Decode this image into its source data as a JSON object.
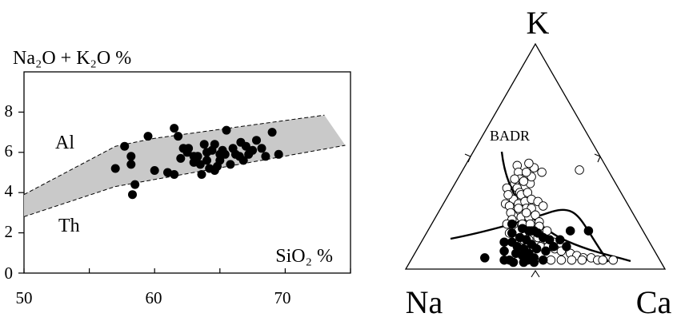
{
  "chart_data": [
    {
      "type": "scatter",
      "title": "",
      "ylabel": "Na₂O + K₂O %",
      "xlabel": "SiO₂ %",
      "xlim": [
        50,
        75
      ],
      "ylim": [
        0,
        10
      ],
      "x_ticks": [
        "50",
        "60",
        "70"
      ],
      "y_ticks": [
        "0",
        "2",
        "4",
        "6",
        "8"
      ],
      "field_labels": {
        "upper": "Al",
        "lower": "Th"
      },
      "series": [
        {
          "values": [
            [
              57.0,
              5.2
            ],
            [
              57.7,
              6.3
            ],
            [
              58.2,
              5.8
            ],
            [
              58.2,
              5.4
            ],
            [
              58.3,
              3.9
            ],
            [
              58.5,
              4.4
            ],
            [
              59.5,
              6.8
            ],
            [
              60.0,
              5.1
            ],
            [
              61.0,
              5.0
            ],
            [
              61.5,
              4.9
            ],
            [
              61.5,
              7.2
            ],
            [
              61.8,
              6.8
            ],
            [
              62.0,
              5.7
            ],
            [
              62.2,
              6.2
            ],
            [
              62.5,
              6.0
            ],
            [
              62.6,
              6.2
            ],
            [
              63.0,
              5.8
            ],
            [
              63.0,
              5.5
            ],
            [
              63.3,
              5.8
            ],
            [
              63.5,
              5.4
            ],
            [
              63.6,
              4.9
            ],
            [
              63.8,
              6.4
            ],
            [
              64.0,
              5.6
            ],
            [
              64.0,
              6.0
            ],
            [
              64.2,
              5.2
            ],
            [
              64.4,
              6.1
            ],
            [
              64.6,
              6.4
            ],
            [
              64.6,
              5.1
            ],
            [
              64.8,
              5.3
            ],
            [
              65.0,
              5.6
            ],
            [
              65.0,
              5.9
            ],
            [
              65.2,
              6.1
            ],
            [
              65.4,
              5.9
            ],
            [
              65.5,
              7.1
            ],
            [
              65.8,
              5.4
            ],
            [
              66.0,
              6.2
            ],
            [
              66.2,
              5.9
            ],
            [
              66.5,
              5.8
            ],
            [
              66.6,
              6.5
            ],
            [
              66.8,
              5.6
            ],
            [
              67.0,
              6.3
            ],
            [
              67.2,
              5.9
            ],
            [
              67.5,
              6.1
            ],
            [
              67.8,
              6.6
            ],
            [
              68.2,
              6.2
            ],
            [
              68.5,
              5.8
            ],
            [
              69.0,
              7.0
            ],
            [
              69.5,
              5.9
            ]
          ]
        }
      ]
    },
    {
      "type": "ternary",
      "title": "",
      "apex_labels": {
        "top": "K",
        "left": "Na",
        "right": "Ca"
      },
      "annotation": "BADR",
      "series": [
        {
          "marker": "open-circle",
          "values": [
            [
              0.2,
              0.46
            ],
            [
              0.22,
              0.43
            ],
            [
              0.24,
              0.4
            ],
            [
              0.21,
              0.36
            ],
            [
              0.23,
              0.38
            ],
            [
              0.25,
              0.36
            ],
            [
              0.27,
              0.34
            ],
            [
              0.29,
              0.38
            ],
            [
              0.26,
              0.31
            ],
            [
              0.28,
              0.33
            ],
            [
              0.3,
              0.34
            ],
            [
              0.24,
              0.29
            ],
            [
              0.26,
              0.28
            ],
            [
              0.29,
              0.29
            ],
            [
              0.31,
              0.3
            ],
            [
              0.33,
              0.31
            ],
            [
              0.28,
              0.25
            ],
            [
              0.31,
              0.26
            ],
            [
              0.33,
              0.27
            ],
            [
              0.35,
              0.27
            ],
            [
              0.3,
              0.22
            ],
            [
              0.33,
              0.23
            ],
            [
              0.36,
              0.23
            ],
            [
              0.38,
              0.24
            ],
            [
              0.32,
              0.19
            ],
            [
              0.35,
              0.2
            ],
            [
              0.38,
              0.2
            ],
            [
              0.41,
              0.21
            ],
            [
              0.37,
              0.16
            ],
            [
              0.4,
              0.17
            ],
            [
              0.43,
              0.17
            ],
            [
              0.46,
              0.17
            ],
            [
              0.41,
              0.13
            ],
            [
              0.44,
              0.14
            ],
            [
              0.48,
              0.13
            ],
            [
              0.51,
              0.12
            ],
            [
              0.47,
              0.1
            ],
            [
              0.5,
              0.1
            ],
            [
              0.53,
              0.09
            ],
            [
              0.56,
              0.08
            ],
            [
              0.6,
              0.07
            ],
            [
              0.63,
              0.06
            ],
            [
              0.66,
              0.05
            ],
            [
              0.69,
              0.05
            ],
            [
              0.72,
              0.04
            ],
            [
              0.74,
              0.04
            ],
            [
              0.78,
              0.04
            ],
            [
              0.45,
              0.44
            ],
            [
              0.23,
              0.33
            ],
            [
              0.28,
              0.41
            ],
            [
              0.31,
              0.43
            ],
            [
              0.27,
              0.45
            ],
            [
              0.25,
              0.43
            ],
            [
              0.3,
              0.27
            ],
            [
              0.34,
              0.25
            ],
            [
              0.36,
              0.3
            ],
            [
              0.39,
              0.28
            ],
            [
              0.42,
              0.19
            ],
            [
              0.39,
              0.13
            ],
            [
              0.35,
              0.17
            ],
            [
              0.32,
              0.16
            ],
            [
              0.29,
              0.2
            ],
            [
              0.44,
              0.1
            ],
            [
              0.54,
              0.04
            ],
            [
              0.58,
              0.04
            ],
            [
              0.62,
              0.04
            ],
            [
              0.66,
              0.04
            ],
            [
              0.24,
              0.47
            ],
            [
              0.26,
              0.39
            ],
            [
              0.22,
              0.4
            ]
          ]
        },
        {
          "marker": "filled-circle",
          "values": [
            [
              0.31,
              0.2
            ],
            [
              0.33,
              0.16
            ],
            [
              0.35,
              0.12
            ],
            [
              0.34,
              0.08
            ],
            [
              0.37,
              0.14
            ],
            [
              0.38,
              0.1
            ],
            [
              0.4,
              0.13
            ],
            [
              0.39,
              0.07
            ],
            [
              0.41,
              0.09
            ],
            [
              0.42,
              0.06
            ],
            [
              0.43,
              0.11
            ],
            [
              0.44,
              0.07
            ],
            [
              0.45,
              0.04
            ],
            [
              0.46,
              0.09
            ],
            [
              0.47,
              0.05
            ],
            [
              0.49,
              0.13
            ],
            [
              0.5,
              0.08
            ],
            [
              0.52,
              0.1
            ],
            [
              0.53,
              0.13
            ],
            [
              0.55,
              0.17
            ],
            [
              0.36,
              0.04
            ],
            [
              0.38,
              0.04
            ],
            [
              0.4,
              0.03
            ],
            [
              0.44,
              0.03
            ],
            [
              0.48,
              0.03
            ],
            [
              0.28,
              0.05
            ],
            [
              0.32,
              0.12
            ],
            [
              0.36,
              0.18
            ],
            [
              0.41,
              0.17
            ],
            [
              0.46,
              0.14
            ],
            [
              0.62,
              0.17
            ],
            [
              0.51,
              0.04
            ],
            [
              0.43,
              0.16
            ],
            [
              0.39,
              0.17
            ],
            [
              0.57,
              0.1
            ]
          ]
        }
      ]
    }
  ]
}
